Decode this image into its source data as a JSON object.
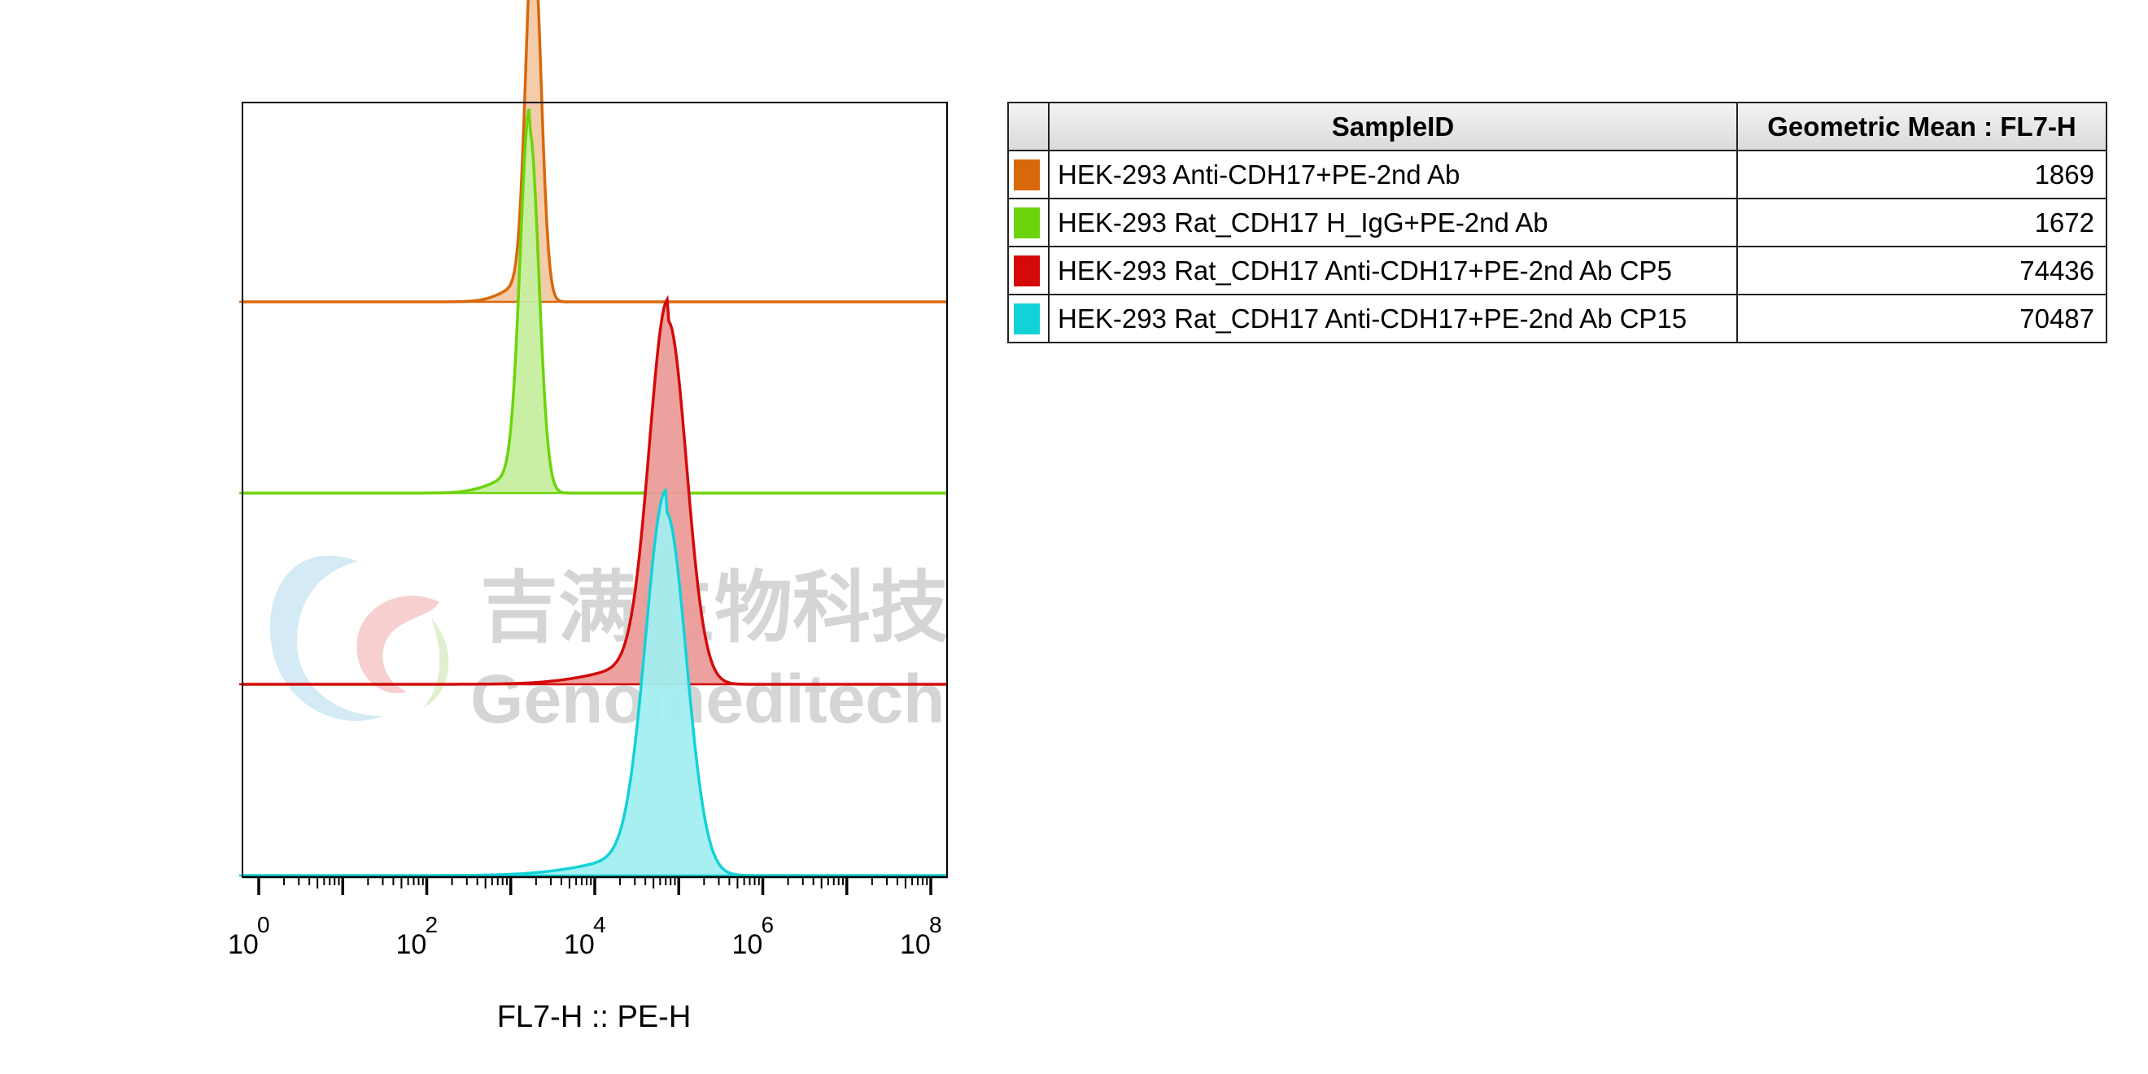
{
  "chart_data": {
    "type": "histogram",
    "xlabel": "FL7-H :: PE-H",
    "x_scale": "log",
    "xlim": [
      1,
      100000000
    ],
    "x_ticks": [
      {
        "base": "10",
        "exp": "0",
        "value": 1
      },
      {
        "base": "10",
        "exp": "2",
        "value": 100
      },
      {
        "base": "10",
        "exp": "4",
        "value": 10000
      },
      {
        "base": "10",
        "exp": "6",
        "value": 1000000
      },
      {
        "base": "10",
        "exp": "8",
        "value": 100000000
      }
    ],
    "layout": "offset-stacked",
    "series": [
      {
        "name": "HEK-293 Anti-CDH17+PE-2nd Ab",
        "color": "#d9680a",
        "fill": "#f2c9a4",
        "peak_x": 1869,
        "peak_height": 1.0,
        "width_decades": 0.09,
        "geometric_mean": "1869"
      },
      {
        "name": "HEK-293 Rat_CDH17 H_IgG+PE-2nd Ab",
        "color": "#6cd40a",
        "fill": "#c6eea0",
        "peak_x": 1672,
        "peak_height": 1.0,
        "width_decades": 0.11,
        "geometric_mean": "1672"
      },
      {
        "name": "HEK-293 Rat_CDH17 Anti-CDH17+PE-2nd Ab CP5",
        "color": "#d40a0a",
        "fill": "#ec9c9a",
        "peak_x": 74436,
        "peak_height": 1.0,
        "width_decades": 0.22,
        "geometric_mean": "74436"
      },
      {
        "name": "HEK-293 Rat_CDH17 Anti-CDH17+PE-2nd Ab CP15",
        "color": "#12d2d8",
        "fill": "#a2eef0",
        "peak_x": 70487,
        "peak_height": 1.0,
        "width_decades": 0.24,
        "geometric_mean": "70487"
      }
    ],
    "table": {
      "headers": [
        "SampleID",
        "Geometric Mean : FL7-H"
      ],
      "rows": [
        {
          "sample": "HEK-293 Anti-CDH17+PE-2nd Ab",
          "value": "1869",
          "color": "#d9680a"
        },
        {
          "sample": "HEK-293 Rat_CDH17 H_IgG+PE-2nd Ab",
          "value": "1672",
          "color": "#6cd40a"
        },
        {
          "sample": "HEK-293 Rat_CDH17 Anti-CDH17+PE-2nd Ab CP5",
          "value": "74436",
          "color": "#d40a0a"
        },
        {
          "sample": "HEK-293 Rat_CDH17 Anti-CDH17+PE-2nd Ab CP15",
          "value": "70487",
          "color": "#12d2d8"
        }
      ]
    }
  },
  "watermark": {
    "chinese": "吉满生物科技",
    "english": "Genomeditech"
  }
}
